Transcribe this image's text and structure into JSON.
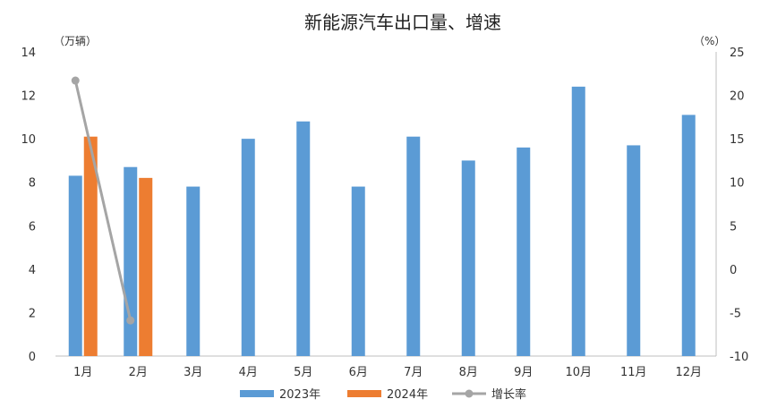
{
  "chart_data": {
    "type": "bar",
    "title": "新能源汽车出口量、增速",
    "y_left_unit": "（万辆）",
    "y_right_unit": "（%）",
    "categories": [
      "1月",
      "2月",
      "3月",
      "4月",
      "5月",
      "6月",
      "7月",
      "8月",
      "9月",
      "10月",
      "11月",
      "12月"
    ],
    "y_left_range": [
      0,
      14
    ],
    "y_left_ticks": [
      0,
      2,
      4,
      6,
      8,
      10,
      12,
      14
    ],
    "y_right_range": [
      -10,
      25
    ],
    "y_right_ticks": [
      -10,
      -5,
      0,
      5,
      10,
      15,
      20,
      25
    ],
    "negative_tick_color": "#ff0000",
    "series": [
      {
        "name": "2023年",
        "kind": "bar",
        "axis": "left",
        "color": "#5b9bd5",
        "values": [
          8.3,
          8.7,
          7.8,
          10.0,
          10.8,
          7.8,
          10.1,
          9.0,
          9.6,
          12.4,
          9.7,
          11.1
        ]
      },
      {
        "name": "2024年",
        "kind": "bar",
        "axis": "left",
        "color": "#ed7d31",
        "values": [
          10.1,
          8.2,
          null,
          null,
          null,
          null,
          null,
          null,
          null,
          null,
          null,
          null
        ]
      },
      {
        "name": "增长率",
        "kind": "line",
        "axis": "right",
        "color": "#a5a5a5",
        "values": [
          21.7,
          -5.9,
          null,
          null,
          null,
          null,
          null,
          null,
          null,
          null,
          null,
          null
        ]
      }
    ],
    "legend_position": "bottom",
    "grid": false
  }
}
